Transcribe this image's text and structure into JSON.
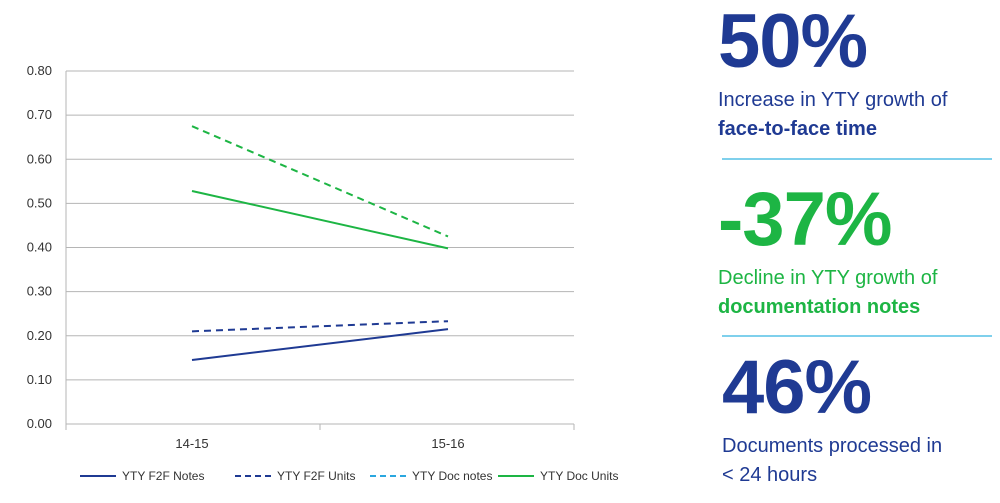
{
  "colors": {
    "blue_dark": "#1f3a93",
    "blue_light": "#2aa7df",
    "green": "#1db544",
    "grid": "#b5b5b5",
    "divider": "#7fd0ec"
  },
  "chart_data": {
    "type": "line",
    "categories": [
      "14-15",
      "15-16"
    ],
    "ylim": [
      0,
      0.8
    ],
    "yticks": [
      "0.00",
      "0.10",
      "0.20",
      "0.30",
      "0.40",
      "0.50",
      "0.60",
      "0.70",
      "0.80"
    ],
    "ytick_values": [
      0,
      0.1,
      0.2,
      0.3,
      0.4,
      0.5,
      0.6,
      0.7,
      0.8
    ],
    "grid": true,
    "legend_position": "bottom",
    "series": [
      {
        "name": "YTY F2F Notes",
        "values": [
          0.145,
          0.215
        ],
        "color": "#1f3a93",
        "dash": "solid"
      },
      {
        "name": "YTY F2F Units",
        "values": [
          0.21,
          0.233
        ],
        "color": "#1f3a93",
        "dash": "dashed"
      },
      {
        "name": "YTY Doc notes",
        "values": [
          0.675,
          0.425
        ],
        "color": "#1db544",
        "dash": "dashed",
        "legend_color": "#2aa7df"
      },
      {
        "name": "YTY Doc Units",
        "values": [
          0.528,
          0.398
        ],
        "color": "#1db544",
        "dash": "solid"
      }
    ]
  },
  "stats": [
    {
      "value": "50%",
      "line1": "Increase in YTY growth of",
      "line2": "face-to-face time",
      "color": "#1f3a93"
    },
    {
      "value": "-37%",
      "line1": "Decline in YTY growth of",
      "line2": "documentation notes",
      "color": "#1db544"
    },
    {
      "value": "46%",
      "line1": "Documents processed in",
      "line2": "< 24 hours",
      "color": "#1f3a93"
    }
  ]
}
